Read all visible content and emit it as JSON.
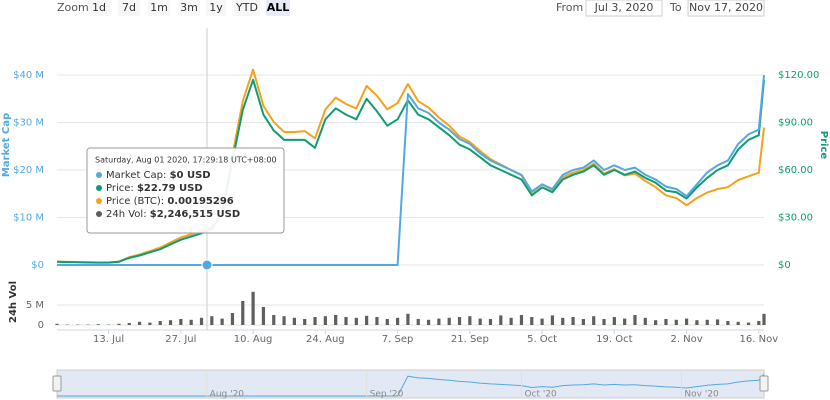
{
  "controls": {
    "zoom_label": "Zoom",
    "zoom_buttons": [
      "1d",
      "7d",
      "1m",
      "3m",
      "1y",
      "YTD",
      "ALL"
    ],
    "zoom_selected": 6,
    "from_label": "From",
    "from_value": "Jul 3, 2020",
    "to_label": "To",
    "to_value": "Nov 17, 2020"
  },
  "tooltip": {
    "date": "Saturday, Aug 01 2020, 17:29:18 UTC+08:00",
    "items": [
      {
        "name": "Market Cap:",
        "value": "$0 USD",
        "series": 0
      },
      {
        "name": "Price:",
        "value": "$22.79 USD",
        "series": 1
      },
      {
        "name": "Price (BTC):",
        "value": "0.00195296",
        "series": 2
      },
      {
        "name": "24h Vol:",
        "value": "$2,246,515 USD",
        "series": 3
      }
    ]
  },
  "navigator": {
    "xticks": [
      {
        "value": "2020-08-01",
        "label": "Aug '20"
      },
      {
        "value": "2020-09-01",
        "label": "Sep '20"
      },
      {
        "value": "2020-10-01",
        "label": "Oct '20"
      },
      {
        "value": "2020-11-01",
        "label": "Nov '20"
      }
    ]
  },
  "chart_data": [
    {
      "type": "line",
      "ylabel": "Market Cap",
      "y2label": "Price",
      "x": [
        "2020-07-03",
        "2020-07-05",
        "2020-07-07",
        "2020-07-09",
        "2020-07-11",
        "2020-07-13",
        "2020-07-15",
        "2020-07-17",
        "2020-07-19",
        "2020-07-21",
        "2020-07-23",
        "2020-07-25",
        "2020-07-27",
        "2020-07-29",
        "2020-07-31",
        "2020-08-02",
        "2020-08-04",
        "2020-08-06",
        "2020-08-08",
        "2020-08-10",
        "2020-08-12",
        "2020-08-14",
        "2020-08-16",
        "2020-08-18",
        "2020-08-20",
        "2020-08-22",
        "2020-08-24",
        "2020-08-26",
        "2020-08-28",
        "2020-08-30",
        "2020-09-01",
        "2020-09-03",
        "2020-09-05",
        "2020-09-07",
        "2020-09-09",
        "2020-09-11",
        "2020-09-13",
        "2020-09-15",
        "2020-09-17",
        "2020-09-19",
        "2020-09-21",
        "2020-09-23",
        "2020-09-25",
        "2020-09-27",
        "2020-09-29",
        "2020-10-01",
        "2020-10-03",
        "2020-10-05",
        "2020-10-07",
        "2020-10-09",
        "2020-10-11",
        "2020-10-13",
        "2020-10-15",
        "2020-10-17",
        "2020-10-19",
        "2020-10-21",
        "2020-10-23",
        "2020-10-25",
        "2020-10-27",
        "2020-10-29",
        "2020-10-31",
        "2020-11-02",
        "2020-11-04",
        "2020-11-06",
        "2020-11-08",
        "2020-11-10",
        "2020-11-12",
        "2020-11-14",
        "2020-11-16",
        "2020-11-17"
      ],
      "xlim": [
        "2020-07-03",
        "2020-11-17"
      ],
      "xticks": [
        {
          "value": "2020-07-13",
          "label": "13. Jul"
        },
        {
          "value": "2020-07-27",
          "label": "27. Jul"
        },
        {
          "value": "2020-08-10",
          "label": "10. Aug"
        },
        {
          "value": "2020-08-24",
          "label": "24. Aug"
        },
        {
          "value": "2020-09-07",
          "label": "7. Sep"
        },
        {
          "value": "2020-09-21",
          "label": "21. Sep"
        },
        {
          "value": "2020-10-05",
          "label": "5. Oct"
        },
        {
          "value": "2020-10-19",
          "label": "19. Oct"
        },
        {
          "value": "2020-11-02",
          "label": "2. Nov"
        },
        {
          "value": "2020-11-16",
          "label": "16. Nov"
        }
      ],
      "ylim": [
        0,
        40
      ],
      "yticks": [
        {
          "value": 0,
          "label": "$0"
        },
        {
          "value": 10,
          "label": "$10 M"
        },
        {
          "value": 20,
          "label": "$20 M"
        },
        {
          "value": 30,
          "label": "$30 M"
        },
        {
          "value": 40,
          "label": "$40 M"
        }
      ],
      "y2lim": [
        0,
        120
      ],
      "y2ticks": [
        {
          "value": 0,
          "label": "$0"
        },
        {
          "value": 30,
          "label": "$30.00"
        },
        {
          "value": 60,
          "label": "$60.00"
        },
        {
          "value": 90,
          "label": "$90.00"
        },
        {
          "value": 120,
          "label": "$120.00"
        }
      ],
      "y3lim": [
        0,
        0.0105
      ],
      "grid": true,
      "series": [
        {
          "name": "Market Cap",
          "color": "#52a9e0",
          "axis": "y",
          "values": [
            0,
            0,
            0,
            0,
            0,
            0,
            0,
            0,
            0,
            0,
            0,
            0,
            0,
            0,
            0,
            0,
            0,
            0,
            0,
            0,
            0,
            0,
            0,
            0,
            0,
            0,
            0,
            0,
            0,
            0,
            0,
            0,
            0,
            0,
            36,
            33,
            32,
            30,
            28.5,
            26.5,
            25.5,
            23.5,
            22,
            21,
            20,
            19,
            15.5,
            17,
            16,
            19,
            20,
            20.5,
            22,
            20,
            21,
            20,
            20.5,
            19,
            18,
            16.5,
            16,
            14.5,
            17,
            19.5,
            21,
            22,
            25.5,
            27.5,
            28.5,
            40
          ]
        },
        {
          "name": "Price",
          "color": "#0f9b76",
          "axis": "y2",
          "values": [
            2,
            1.8,
            1.7,
            1.6,
            1.5,
            1.5,
            2,
            4.5,
            6,
            8,
            10,
            13,
            16,
            18,
            20,
            23,
            32,
            66,
            98,
            117,
            95,
            85,
            79,
            79,
            79,
            74,
            92,
            99,
            95,
            92,
            105,
            97,
            88,
            92,
            104,
            95,
            92,
            87,
            82,
            76,
            73,
            68,
            63,
            60,
            57,
            54,
            44,
            49,
            46,
            54,
            57,
            59,
            63,
            57,
            60,
            57,
            59,
            55,
            52,
            47,
            46,
            42,
            49,
            55,
            60,
            63,
            73,
            79,
            82,
            117
          ]
        },
        {
          "name": "Price (BTC)",
          "color": "#f5a21c",
          "axis": "y3",
          "values": [
            0.00019,
            0.00017,
            0.00016,
            0.00015,
            0.00014,
            0.00014,
            0.00019,
            0.00043,
            0.00058,
            0.00077,
            0.00096,
            0.00125,
            0.00152,
            0.0017,
            0.00188,
            0.00213,
            0.00295,
            0.0061,
            0.00905,
            0.0108,
            0.0088,
            0.0079,
            0.00735,
            0.00735,
            0.0074,
            0.007,
            0.0086,
            0.00925,
            0.0089,
            0.00865,
            0.0099,
            0.00935,
            0.0086,
            0.00895,
            0.01,
            0.00905,
            0.0087,
            0.00815,
            0.0077,
            0.0071,
            0.0068,
            0.0063,
            0.00585,
            0.00555,
            0.00525,
            0.00495,
            0.004,
            0.00445,
            0.00415,
            0.00485,
            0.0051,
            0.00525,
            0.0056,
            0.00505,
            0.0053,
            0.00495,
            0.00505,
            0.00465,
            0.0043,
            0.00385,
            0.0037,
            0.0033,
            0.0037,
            0.004,
            0.0042,
            0.0043,
            0.0047,
            0.0049,
            0.0051,
            0.0076
          ]
        }
      ]
    },
    {
      "type": "bar",
      "ylabel": "24h Vol",
      "x": [
        "2020-07-03",
        "2020-07-05",
        "2020-07-07",
        "2020-07-09",
        "2020-07-11",
        "2020-07-13",
        "2020-07-15",
        "2020-07-17",
        "2020-07-19",
        "2020-07-21",
        "2020-07-23",
        "2020-07-25",
        "2020-07-27",
        "2020-07-29",
        "2020-07-31",
        "2020-08-02",
        "2020-08-04",
        "2020-08-06",
        "2020-08-08",
        "2020-08-10",
        "2020-08-12",
        "2020-08-14",
        "2020-08-16",
        "2020-08-18",
        "2020-08-20",
        "2020-08-22",
        "2020-08-24",
        "2020-08-26",
        "2020-08-28",
        "2020-08-30",
        "2020-09-01",
        "2020-09-03",
        "2020-09-05",
        "2020-09-07",
        "2020-09-09",
        "2020-09-11",
        "2020-09-13",
        "2020-09-15",
        "2020-09-17",
        "2020-09-19",
        "2020-09-21",
        "2020-09-23",
        "2020-09-25",
        "2020-09-27",
        "2020-09-29",
        "2020-10-01",
        "2020-10-03",
        "2020-10-05",
        "2020-10-07",
        "2020-10-09",
        "2020-10-11",
        "2020-10-13",
        "2020-10-15",
        "2020-10-17",
        "2020-10-19",
        "2020-10-21",
        "2020-10-23",
        "2020-10-25",
        "2020-10-27",
        "2020-10-29",
        "2020-10-31",
        "2020-11-02",
        "2020-11-04",
        "2020-11-06",
        "2020-11-08",
        "2020-11-10",
        "2020-11-12",
        "2020-11-14",
        "2020-11-16",
        "2020-11-17"
      ],
      "xlim": [
        "2020-07-03",
        "2020-11-17"
      ],
      "ylim": [
        0,
        10
      ],
      "yticks": [
        0,
        {
          "value": 5,
          "label": "5 M"
        }
      ],
      "grid": true,
      "series": [
        {
          "name": "24h Vol",
          "color": "#5f5f5f",
          "values": [
            0.3,
            0.1,
            0.1,
            0.1,
            0.2,
            0.1,
            0.3,
            0.5,
            0.8,
            0.6,
            1,
            1.2,
            1.5,
            1.3,
            1.8,
            2.2,
            1.6,
            3,
            6,
            8.3,
            4.5,
            2.5,
            2.2,
            1.8,
            1.5,
            2,
            2.2,
            2.5,
            2,
            1.8,
            2.3,
            2,
            1.5,
            1.8,
            2.8,
            1.5,
            1.3,
            1.6,
            1.8,
            2,
            2.2,
            1.6,
            1.5,
            2.4,
            1.8,
            2.5,
            2,
            1.6,
            2.4,
            1.8,
            2,
            1.5,
            2.2,
            1.5,
            2,
            1.6,
            2.5,
            1.8,
            1.2,
            1.5,
            1.3,
            1.6,
            1.2,
            1.3,
            1.4,
            1,
            0.8,
            0.6,
            1,
            2.8
          ]
        }
      ]
    }
  ]
}
